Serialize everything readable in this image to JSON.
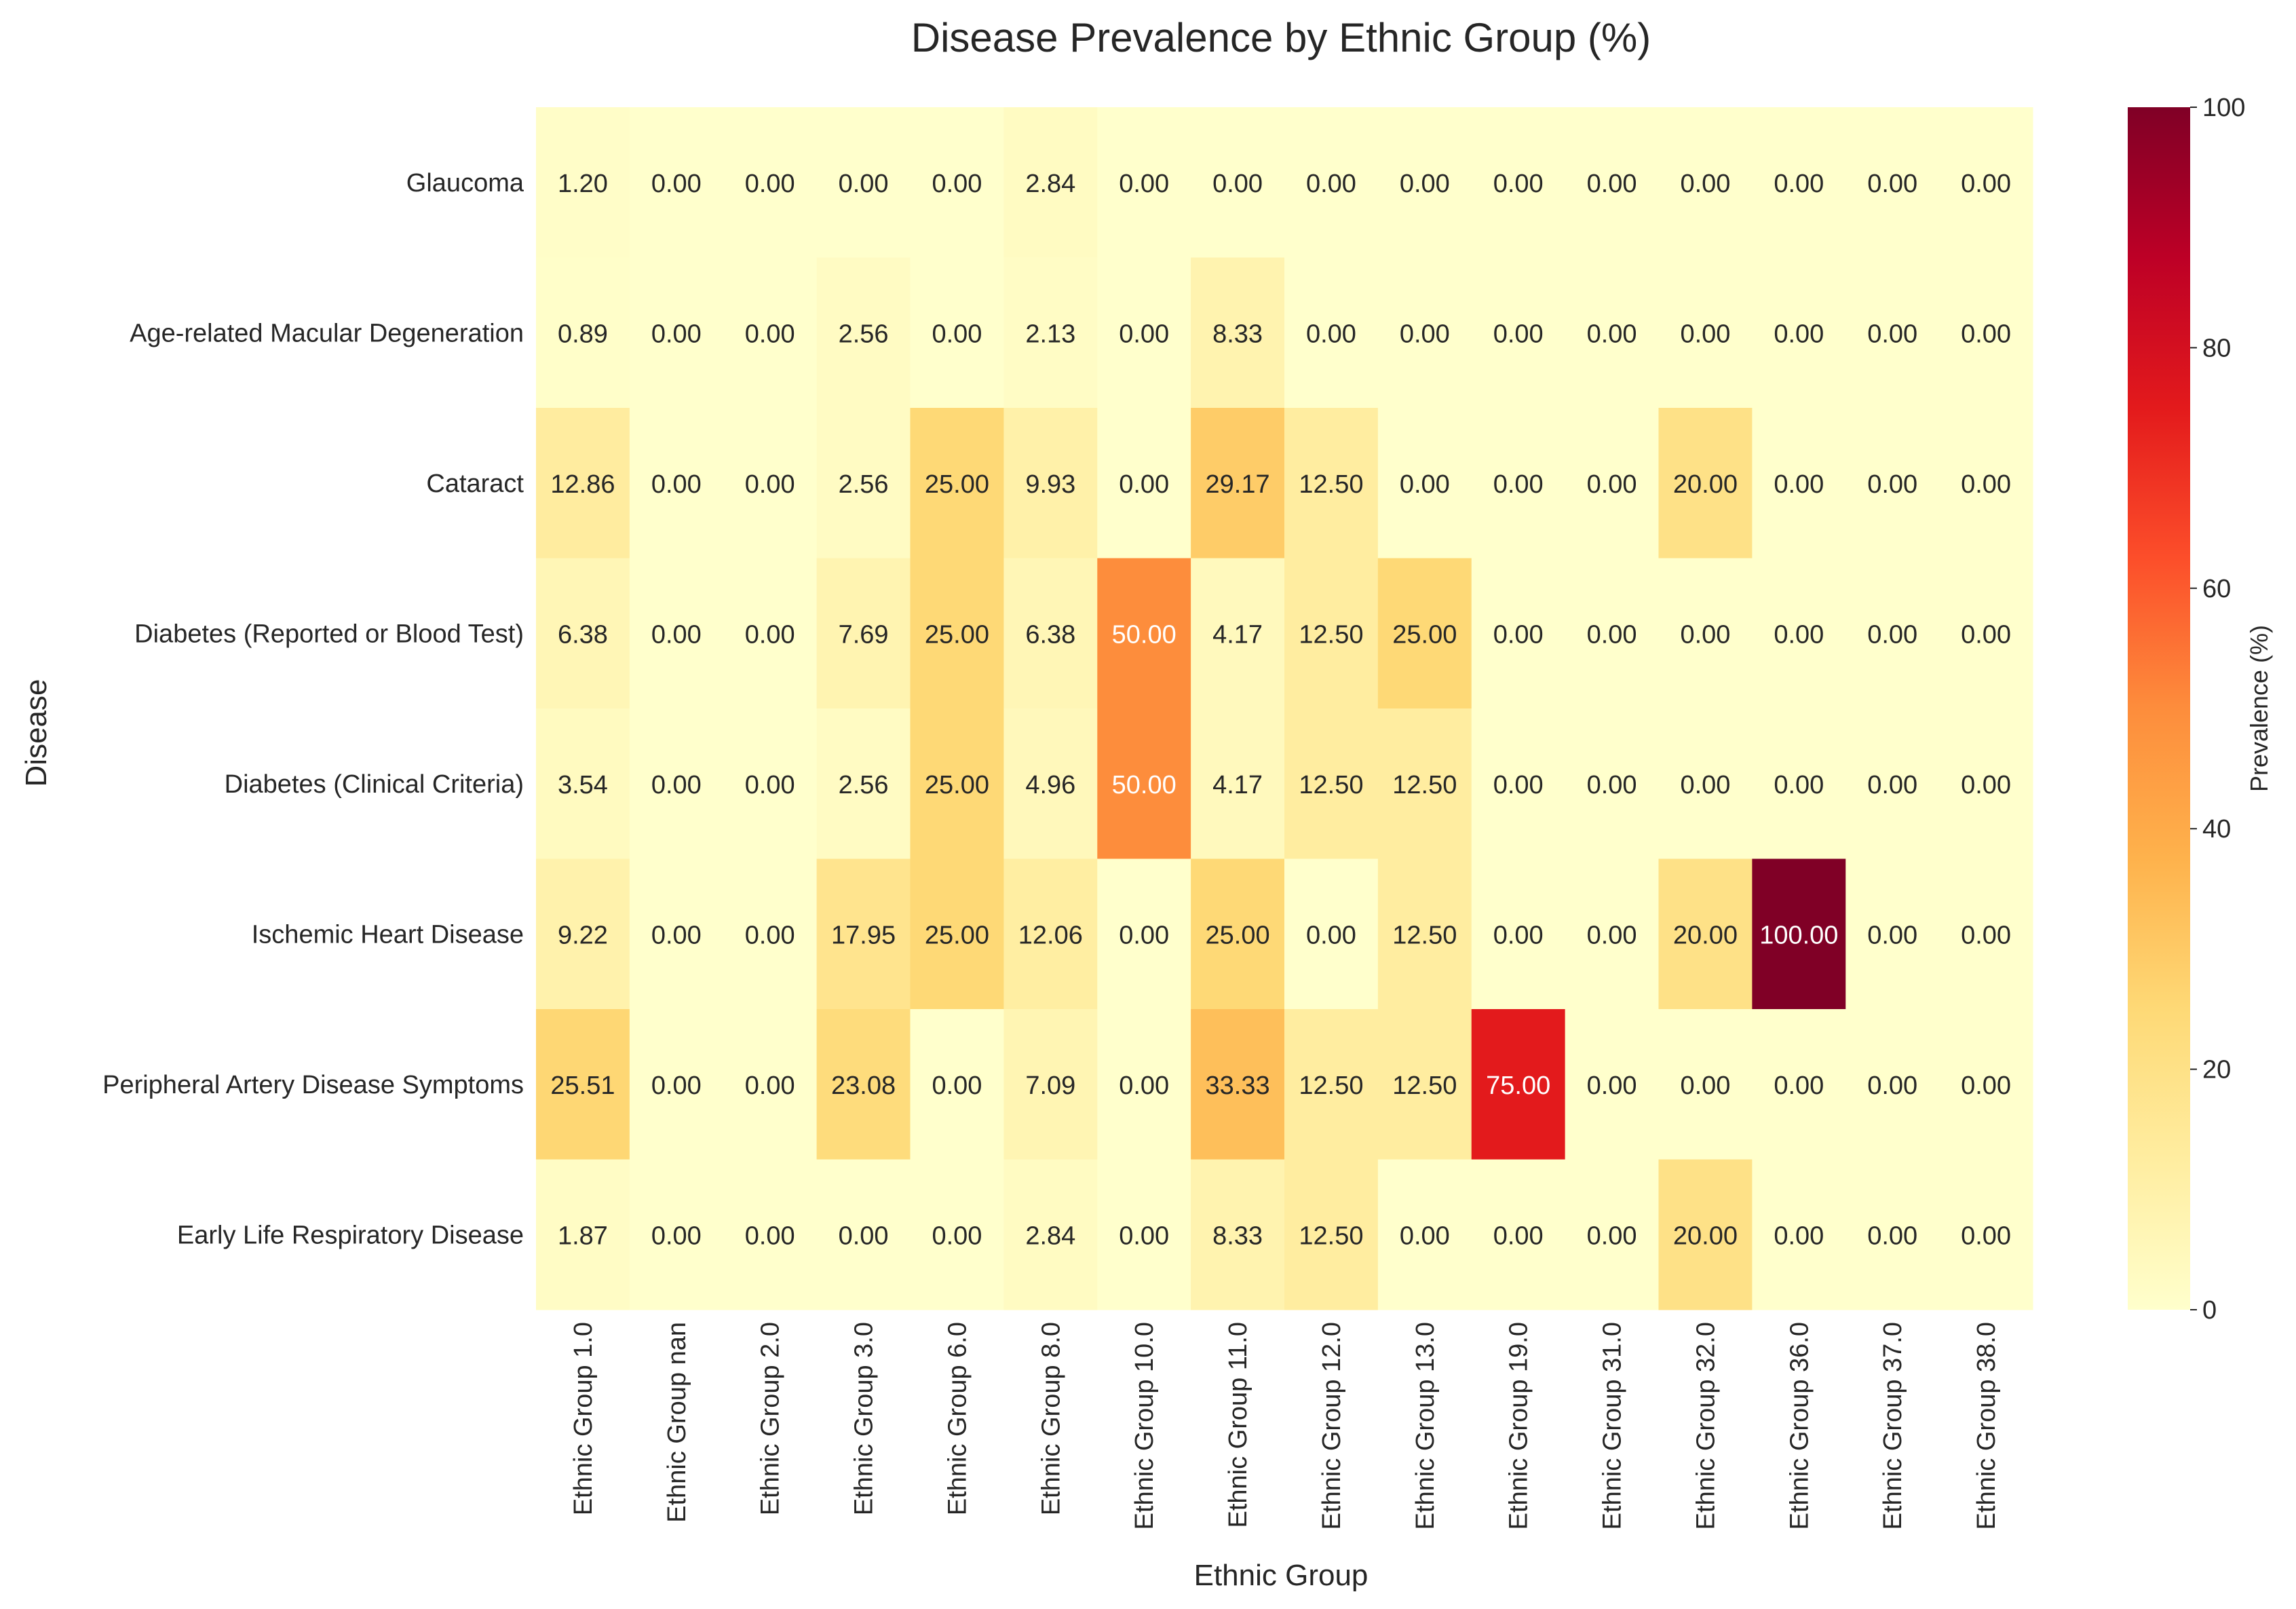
{
  "chart_data": {
    "type": "heatmap",
    "title": "Disease Prevalence by Ethnic Group (%)",
    "xlabel": "Ethnic Group",
    "ylabel": "Disease",
    "x": [
      "Ethnic Group 1.0",
      "Ethnic Group nan",
      "Ethnic Group 2.0",
      "Ethnic Group 3.0",
      "Ethnic Group 6.0",
      "Ethnic Group 8.0",
      "Ethnic Group 10.0",
      "Ethnic Group 11.0",
      "Ethnic Group 12.0",
      "Ethnic Group 13.0",
      "Ethnic Group 19.0",
      "Ethnic Group 31.0",
      "Ethnic Group 32.0",
      "Ethnic Group 36.0",
      "Ethnic Group 37.0",
      "Ethnic Group 38.0"
    ],
    "y": [
      "Glaucoma",
      "Age-related Macular Degeneration",
      "Cataract",
      "Diabetes (Reported or Blood Test)",
      "Diabetes (Clinical Criteria)",
      "Ischemic Heart Disease",
      "Peripheral Artery Disease Symptoms",
      "Early Life Respiratory Disease"
    ],
    "values": [
      [
        1.2,
        0.0,
        0.0,
        0.0,
        0.0,
        2.84,
        0.0,
        0.0,
        0.0,
        0.0,
        0.0,
        0.0,
        0.0,
        0.0,
        0.0,
        0.0
      ],
      [
        0.89,
        0.0,
        0.0,
        2.56,
        0.0,
        2.13,
        0.0,
        8.33,
        0.0,
        0.0,
        0.0,
        0.0,
        0.0,
        0.0,
        0.0,
        0.0
      ],
      [
        12.86,
        0.0,
        0.0,
        2.56,
        25.0,
        9.93,
        0.0,
        29.17,
        12.5,
        0.0,
        0.0,
        0.0,
        20.0,
        0.0,
        0.0,
        0.0
      ],
      [
        6.38,
        0.0,
        0.0,
        7.69,
        25.0,
        6.38,
        50.0,
        4.17,
        12.5,
        25.0,
        0.0,
        0.0,
        0.0,
        0.0,
        0.0,
        0.0
      ],
      [
        3.54,
        0.0,
        0.0,
        2.56,
        25.0,
        4.96,
        50.0,
        4.17,
        12.5,
        12.5,
        0.0,
        0.0,
        0.0,
        0.0,
        0.0,
        0.0
      ],
      [
        9.22,
        0.0,
        0.0,
        17.95,
        25.0,
        12.06,
        0.0,
        25.0,
        0.0,
        12.5,
        0.0,
        0.0,
        20.0,
        100.0,
        0.0,
        0.0
      ],
      [
        25.51,
        0.0,
        0.0,
        23.08,
        0.0,
        7.09,
        0.0,
        33.33,
        12.5,
        12.5,
        75.0,
        0.0,
        0.0,
        0.0,
        0.0,
        0.0
      ],
      [
        1.87,
        0.0,
        0.0,
        0.0,
        0.0,
        2.84,
        0.0,
        8.33,
        12.5,
        0.0,
        0.0,
        0.0,
        20.0,
        0.0,
        0.0,
        0.0
      ]
    ],
    "value_format": "2 decimals",
    "colorbar": {
      "label": "Prevalence (%)",
      "range": [
        0,
        100
      ],
      "ticks": [
        "0",
        "20",
        "40",
        "60",
        "80",
        "100"
      ],
      "colormap": [
        "#ffffcc",
        "#ffeda0",
        "#fed976",
        "#feb24c",
        "#fd8d3c",
        "#fc4e2a",
        "#e31a1c",
        "#bd0026",
        "#800026"
      ]
    },
    "grid": false
  }
}
